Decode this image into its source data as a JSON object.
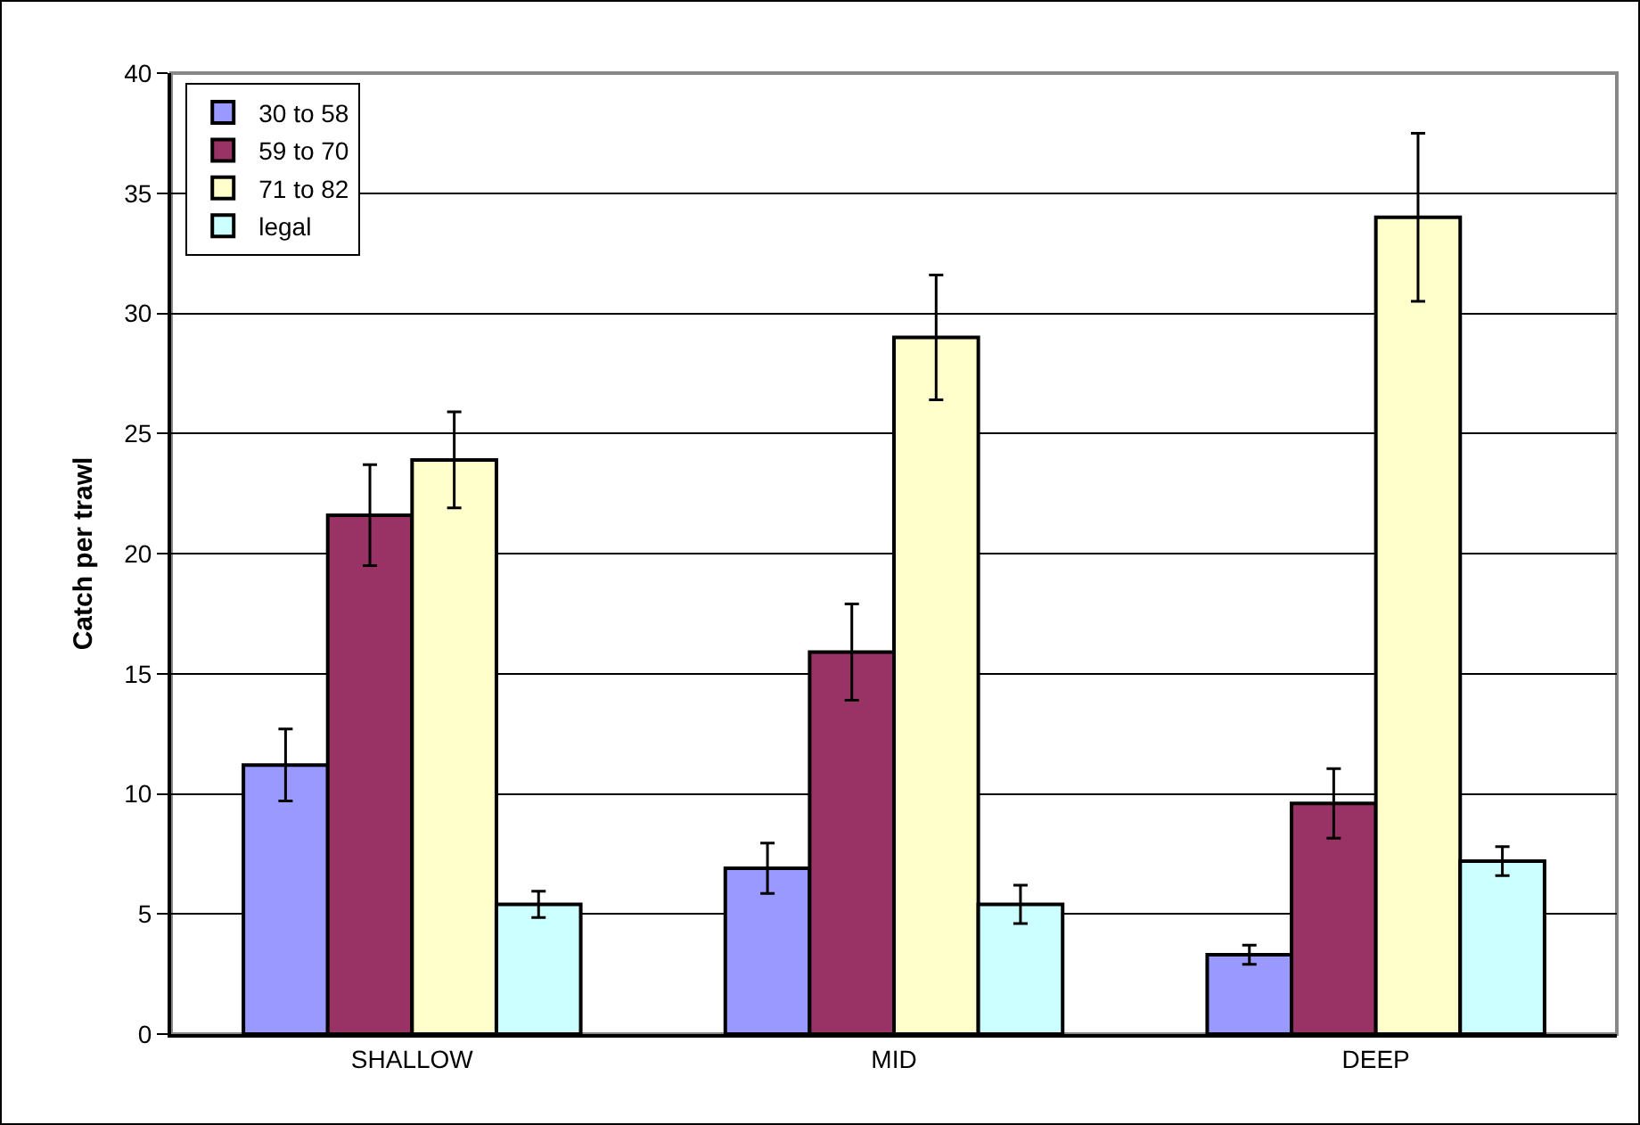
{
  "chart_data": {
    "type": "bar",
    "ylabel": "Catch per trawl",
    "categories": [
      "SHALLOW",
      "MID",
      "DEEP"
    ],
    "series": [
      {
        "name": "30 to 58",
        "color": "#9999ff",
        "values": [
          11.2,
          6.9,
          3.3
        ],
        "errors": [
          1.5,
          1.05,
          0.4
        ]
      },
      {
        "name": "59 to 70",
        "color": "#993366",
        "values": [
          21.6,
          15.9,
          9.6
        ],
        "errors": [
          2.1,
          2.0,
          1.45
        ]
      },
      {
        "name": "71 to 82",
        "color": "#ffffcc",
        "values": [
          23.9,
          29.0,
          34.0
        ],
        "errors": [
          2.0,
          2.6,
          3.5
        ]
      },
      {
        "name": "legal",
        "color": "#ccffff",
        "values": [
          5.4,
          5.4,
          7.2
        ],
        "errors": [
          0.55,
          0.8,
          0.6
        ]
      }
    ],
    "ylim": [
      0,
      40
    ],
    "yticks": [
      0,
      5,
      10,
      15,
      20,
      25,
      30,
      35,
      40
    ],
    "grid": "y",
    "legend": "top left"
  }
}
